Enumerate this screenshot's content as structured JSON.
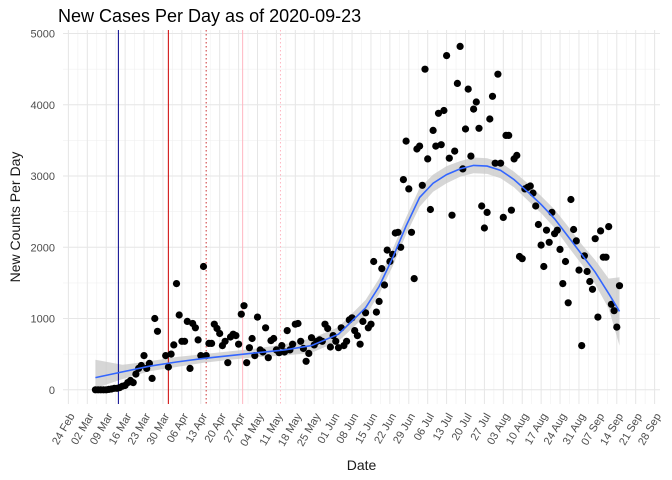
{
  "chart_data": {
    "type": "scatter",
    "title": "New Cases Per Day as of 2020-09-23",
    "xlabel": "Date",
    "ylabel": "New Counts Per Day",
    "ylim": [
      -200,
      5050
    ],
    "xlim_days": [
      -2,
      219
    ],
    "x_origin": "2020-02-24",
    "grid": true,
    "yticks": [
      0,
      1000,
      2000,
      3000,
      4000,
      5000
    ],
    "xticks": [
      {
        "day": 0,
        "label": "24 Feb"
      },
      {
        "day": 7,
        "label": "02 Mar"
      },
      {
        "day": 14,
        "label": "09 Mar"
      },
      {
        "day": 21,
        "label": "16 Mar"
      },
      {
        "day": 28,
        "label": "23 Mar"
      },
      {
        "day": 35,
        "label": "30 Mar"
      },
      {
        "day": 42,
        "label": "06 Apr"
      },
      {
        "day": 49,
        "label": "13 Apr"
      },
      {
        "day": 56,
        "label": "20 Apr"
      },
      {
        "day": 63,
        "label": "27 Apr"
      },
      {
        "day": 70,
        "label": "04 May"
      },
      {
        "day": 77,
        "label": "11 May"
      },
      {
        "day": 84,
        "label": "18 May"
      },
      {
        "day": 91,
        "label": "25 May"
      },
      {
        "day": 98,
        "label": "01 Jun"
      },
      {
        "day": 105,
        "label": "08 Jun"
      },
      {
        "day": 112,
        "label": "15 Jun"
      },
      {
        "day": 119,
        "label": "22 Jun"
      },
      {
        "day": 126,
        "label": "29 Jun"
      },
      {
        "day": 133,
        "label": "06 Jul"
      },
      {
        "day": 140,
        "label": "13 Jul"
      },
      {
        "day": 147,
        "label": "20 Jul"
      },
      {
        "day": 154,
        "label": "27 Jul"
      },
      {
        "day": 161,
        "label": "03 Aug"
      },
      {
        "day": 168,
        "label": "10 Aug"
      },
      {
        "day": 175,
        "label": "17 Aug"
      },
      {
        "day": 182,
        "label": "24 Aug"
      },
      {
        "day": 189,
        "label": "31 Aug"
      },
      {
        "day": 196,
        "label": "07 Sep"
      },
      {
        "day": 203,
        "label": "14 Sep"
      },
      {
        "day": 210,
        "label": "21 Sep"
      },
      {
        "day": 217,
        "label": "28 Sep"
      }
    ],
    "vlines": [
      {
        "day": 18.5,
        "color": "#00008b",
        "style": "solid"
      },
      {
        "day": 37,
        "color": "#cc0000",
        "style": "solid"
      },
      {
        "day": 51,
        "color": "#cc3333",
        "style": "dotted"
      },
      {
        "day": 64.5,
        "color": "#ffb6c1",
        "style": "solid"
      },
      {
        "day": 78.5,
        "color": "#ffb6c1",
        "style": "dotted"
      }
    ],
    "points": [
      {
        "x": 10,
        "y": 0
      },
      {
        "x": 11,
        "y": 0
      },
      {
        "x": 12,
        "y": 0
      },
      {
        "x": 13,
        "y": 0
      },
      {
        "x": 14,
        "y": 0
      },
      {
        "x": 15,
        "y": 5
      },
      {
        "x": 16,
        "y": 10
      },
      {
        "x": 17,
        "y": 20
      },
      {
        "x": 18,
        "y": 20
      },
      {
        "x": 19,
        "y": 30
      },
      {
        "x": 20,
        "y": 50
      },
      {
        "x": 21,
        "y": 60
      },
      {
        "x": 22,
        "y": 100
      },
      {
        "x": 23,
        "y": 130
      },
      {
        "x": 24,
        "y": 100
      },
      {
        "x": 25,
        "y": 220
      },
      {
        "x": 26,
        "y": 300
      },
      {
        "x": 27,
        "y": 340
      },
      {
        "x": 28,
        "y": 480
      },
      {
        "x": 29,
        "y": 300
      },
      {
        "x": 30,
        "y": 370
      },
      {
        "x": 31,
        "y": 160
      },
      {
        "x": 32,
        "y": 1000
      },
      {
        "x": 33,
        "y": 820
      },
      {
        "x": 36,
        "y": 480
      },
      {
        "x": 37,
        "y": 320
      },
      {
        "x": 38,
        "y": 500
      },
      {
        "x": 39,
        "y": 630
      },
      {
        "x": 40,
        "y": 1490
      },
      {
        "x": 41,
        "y": 1050
      },
      {
        "x": 42,
        "y": 680
      },
      {
        "x": 43,
        "y": 680
      },
      {
        "x": 44,
        "y": 960
      },
      {
        "x": 45,
        "y": 300
      },
      {
        "x": 46,
        "y": 930
      },
      {
        "x": 47,
        "y": 870
      },
      {
        "x": 48,
        "y": 700
      },
      {
        "x": 49,
        "y": 480
      },
      {
        "x": 50,
        "y": 1730
      },
      {
        "x": 51,
        "y": 480
      },
      {
        "x": 52,
        "y": 650
      },
      {
        "x": 53,
        "y": 650
      },
      {
        "x": 54,
        "y": 920
      },
      {
        "x": 55,
        "y": 860
      },
      {
        "x": 56,
        "y": 790
      },
      {
        "x": 57,
        "y": 620
      },
      {
        "x": 58,
        "y": 680
      },
      {
        "x": 59,
        "y": 380
      },
      {
        "x": 60,
        "y": 740
      },
      {
        "x": 61,
        "y": 780
      },
      {
        "x": 62,
        "y": 760
      },
      {
        "x": 63,
        "y": 640
      },
      {
        "x": 64,
        "y": 1060
      },
      {
        "x": 65,
        "y": 1180
      },
      {
        "x": 66,
        "y": 380
      },
      {
        "x": 67,
        "y": 590
      },
      {
        "x": 68,
        "y": 720
      },
      {
        "x": 69,
        "y": 480
      },
      {
        "x": 70,
        "y": 1020
      },
      {
        "x": 71,
        "y": 560
      },
      {
        "x": 72,
        "y": 530
      },
      {
        "x": 73,
        "y": 870
      },
      {
        "x": 74,
        "y": 450
      },
      {
        "x": 75,
        "y": 690
      },
      {
        "x": 76,
        "y": 720
      },
      {
        "x": 77,
        "y": 560
      },
      {
        "x": 78,
        "y": 520
      },
      {
        "x": 79,
        "y": 620
      },
      {
        "x": 80,
        "y": 530
      },
      {
        "x": 81,
        "y": 830
      },
      {
        "x": 82,
        "y": 560
      },
      {
        "x": 83,
        "y": 640
      },
      {
        "x": 84,
        "y": 920
      },
      {
        "x": 85,
        "y": 930
      },
      {
        "x": 86,
        "y": 680
      },
      {
        "x": 87,
        "y": 580
      },
      {
        "x": 88,
        "y": 400
      },
      {
        "x": 89,
        "y": 510
      },
      {
        "x": 90,
        "y": 730
      },
      {
        "x": 91,
        "y": 630
      },
      {
        "x": 92,
        "y": 680
      },
      {
        "x": 93,
        "y": 700
      },
      {
        "x": 94,
        "y": 680
      },
      {
        "x": 95,
        "y": 920
      },
      {
        "x": 96,
        "y": 860
      },
      {
        "x": 97,
        "y": 600
      },
      {
        "x": 98,
        "y": 760
      },
      {
        "x": 99,
        "y": 680
      },
      {
        "x": 100,
        "y": 590
      },
      {
        "x": 101,
        "y": 870
      },
      {
        "x": 102,
        "y": 620
      },
      {
        "x": 103,
        "y": 680
      },
      {
        "x": 104,
        "y": 980
      },
      {
        "x": 105,
        "y": 1010
      },
      {
        "x": 106,
        "y": 830
      },
      {
        "x": 107,
        "y": 760
      },
      {
        "x": 108,
        "y": 640
      },
      {
        "x": 109,
        "y": 960
      },
      {
        "x": 110,
        "y": 1080
      },
      {
        "x": 111,
        "y": 870
      },
      {
        "x": 112,
        "y": 920
      },
      {
        "x": 113,
        "y": 1800
      },
      {
        "x": 114,
        "y": 1090
      },
      {
        "x": 115,
        "y": 1240
      },
      {
        "x": 116,
        "y": 1700
      },
      {
        "x": 117,
        "y": 1470
      },
      {
        "x": 118,
        "y": 1960
      },
      {
        "x": 119,
        "y": 1800
      },
      {
        "x": 120,
        "y": 1900
      },
      {
        "x": 121,
        "y": 2200
      },
      {
        "x": 122,
        "y": 2210
      },
      {
        "x": 123,
        "y": 2000
      },
      {
        "x": 124,
        "y": 2950
      },
      {
        "x": 125,
        "y": 3490
      },
      {
        "x": 126,
        "y": 2820
      },
      {
        "x": 127,
        "y": 2210
      },
      {
        "x": 128,
        "y": 1560
      },
      {
        "x": 129,
        "y": 3380
      },
      {
        "x": 130,
        "y": 3420
      },
      {
        "x": 131,
        "y": 2870
      },
      {
        "x": 132,
        "y": 4500
      },
      {
        "x": 133,
        "y": 3240
      },
      {
        "x": 134,
        "y": 2530
      },
      {
        "x": 135,
        "y": 3640
      },
      {
        "x": 136,
        "y": 3420
      },
      {
        "x": 137,
        "y": 3880
      },
      {
        "x": 138,
        "y": 3440
      },
      {
        "x": 139,
        "y": 3920
      },
      {
        "x": 140,
        "y": 4690
      },
      {
        "x": 141,
        "y": 3250
      },
      {
        "x": 142,
        "y": 2450
      },
      {
        "x": 143,
        "y": 3350
      },
      {
        "x": 144,
        "y": 4300
      },
      {
        "x": 145,
        "y": 4820
      },
      {
        "x": 146,
        "y": 3100
      },
      {
        "x": 147,
        "y": 3660
      },
      {
        "x": 148,
        "y": 4220
      },
      {
        "x": 149,
        "y": 3280
      },
      {
        "x": 150,
        "y": 3940
      },
      {
        "x": 151,
        "y": 4040
      },
      {
        "x": 152,
        "y": 3670
      },
      {
        "x": 153,
        "y": 2580
      },
      {
        "x": 154,
        "y": 2270
      },
      {
        "x": 155,
        "y": 2490
      },
      {
        "x": 156,
        "y": 3800
      },
      {
        "x": 157,
        "y": 4120
      },
      {
        "x": 158,
        "y": 3180
      },
      {
        "x": 159,
        "y": 4430
      },
      {
        "x": 160,
        "y": 3180
      },
      {
        "x": 161,
        "y": 2420
      },
      {
        "x": 162,
        "y": 3570
      },
      {
        "x": 163,
        "y": 3570
      },
      {
        "x": 164,
        "y": 2520
      },
      {
        "x": 165,
        "y": 3240
      },
      {
        "x": 166,
        "y": 3290
      },
      {
        "x": 167,
        "y": 1870
      },
      {
        "x": 168,
        "y": 1840
      },
      {
        "x": 169,
        "y": 2820
      },
      {
        "x": 170,
        "y": 2840
      },
      {
        "x": 171,
        "y": 2860
      },
      {
        "x": 172,
        "y": 2760
      },
      {
        "x": 173,
        "y": 2580
      },
      {
        "x": 174,
        "y": 2320
      },
      {
        "x": 175,
        "y": 2030
      },
      {
        "x": 176,
        "y": 1730
      },
      {
        "x": 177,
        "y": 2240
      },
      {
        "x": 178,
        "y": 2070
      },
      {
        "x": 179,
        "y": 2490
      },
      {
        "x": 180,
        "y": 2190
      },
      {
        "x": 181,
        "y": 2240
      },
      {
        "x": 182,
        "y": 1970
      },
      {
        "x": 183,
        "y": 1490
      },
      {
        "x": 184,
        "y": 1800
      },
      {
        "x": 185,
        "y": 1220
      },
      {
        "x": 186,
        "y": 2670
      },
      {
        "x": 187,
        "y": 2250
      },
      {
        "x": 188,
        "y": 2090
      },
      {
        "x": 189,
        "y": 1680
      },
      {
        "x": 190,
        "y": 620
      },
      {
        "x": 191,
        "y": 1880
      },
      {
        "x": 192,
        "y": 1660
      },
      {
        "x": 193,
        "y": 1520
      },
      {
        "x": 194,
        "y": 1410
      },
      {
        "x": 195,
        "y": 2120
      },
      {
        "x": 196,
        "y": 1020
      },
      {
        "x": 197,
        "y": 2230
      },
      {
        "x": 198,
        "y": 1860
      },
      {
        "x": 199,
        "y": 1860
      },
      {
        "x": 200,
        "y": 2290
      },
      {
        "x": 201,
        "y": 1200
      },
      {
        "x": 202,
        "y": 1110
      },
      {
        "x": 203,
        "y": 880
      },
      {
        "x": 204,
        "y": 1460
      }
    ],
    "smooth": {
      "color": "#3366ff",
      "band_color": "#c8c8c8",
      "x": [
        10,
        20,
        30,
        40,
        50,
        60,
        70,
        80,
        90,
        100,
        110,
        115,
        120,
        125,
        130,
        135,
        140,
        145,
        150,
        155,
        160,
        165,
        170,
        175,
        180,
        185,
        190,
        195,
        200,
        204
      ],
      "y": [
        170,
        250,
        330,
        390,
        440,
        480,
        520,
        560,
        620,
        780,
        1150,
        1450,
        1850,
        2300,
        2700,
        2900,
        3020,
        3100,
        3150,
        3140,
        3080,
        2950,
        2780,
        2600,
        2400,
        2150,
        1900,
        1650,
        1350,
        1100
      ],
      "lower": [
        20,
        150,
        260,
        320,
        380,
        420,
        460,
        480,
        520,
        680,
        1040,
        1340,
        1730,
        2180,
        2570,
        2780,
        2900,
        2990,
        3040,
        3030,
        2970,
        2840,
        2660,
        2480,
        2270,
        2010,
        1760,
        1480,
        1140,
        620
      ],
      "upper": [
        420,
        350,
        400,
        460,
        500,
        540,
        580,
        640,
        720,
        880,
        1260,
        1560,
        1970,
        2420,
        2830,
        3020,
        3140,
        3210,
        3260,
        3250,
        3190,
        3060,
        2900,
        2720,
        2530,
        2290,
        2040,
        1820,
        1560,
        1580
      ]
    }
  }
}
